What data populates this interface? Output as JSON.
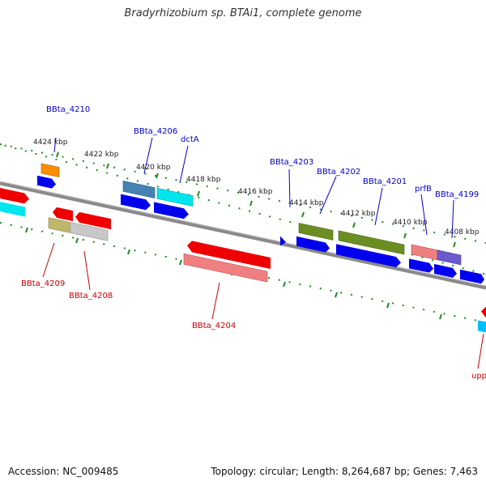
{
  "header": {
    "title": "Bradyrhizobium sp. BTAi1, complete genome"
  },
  "footer": {
    "accession": "Accession: NC_009485",
    "summary": "Topology: circular; Length: 8,264,687 bp; Genes: 7,463"
  },
  "map": {
    "tick_labels": [
      "4424 kbp",
      "4422 kbp",
      "4420 kbp",
      "4418 kbp",
      "4416 kbp",
      "4414 kbp",
      "4412 kbp",
      "4410 kbp",
      "4408 kbp"
    ],
    "top_gene_labels": [
      "BBta_4210",
      "BBta_4206",
      "dctA",
      "BBta_4203",
      "BBta_4202",
      "BBta_4201",
      "prfB",
      "BBta_4199"
    ],
    "bottom_gene_labels": [
      "BBta_4209",
      "BBta_4208",
      "BBta_4204",
      "upp"
    ],
    "colors": {
      "top_label": "#0000cc",
      "bottom_label": "#cc0000",
      "backbone": "#808080",
      "tick_marks": "#228b22"
    }
  }
}
